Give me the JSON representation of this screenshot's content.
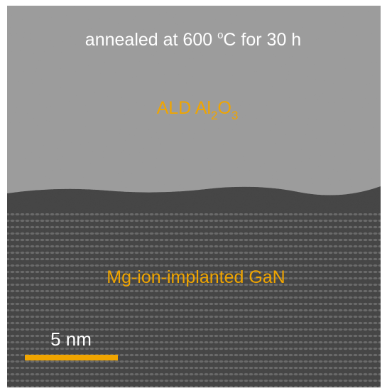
{
  "image": {
    "annotation": {
      "before": "annealed at 600 ",
      "superscript": "o",
      "after": "C for 30 h"
    },
    "top_layer": {
      "prefix": "ALD Al",
      "sub1": "2",
      "mid": "O",
      "sub2": "3"
    },
    "bottom_layer": {
      "label": "Mg-ion-implanted GaN"
    },
    "scale_bar": {
      "label": "5 nm"
    }
  }
}
